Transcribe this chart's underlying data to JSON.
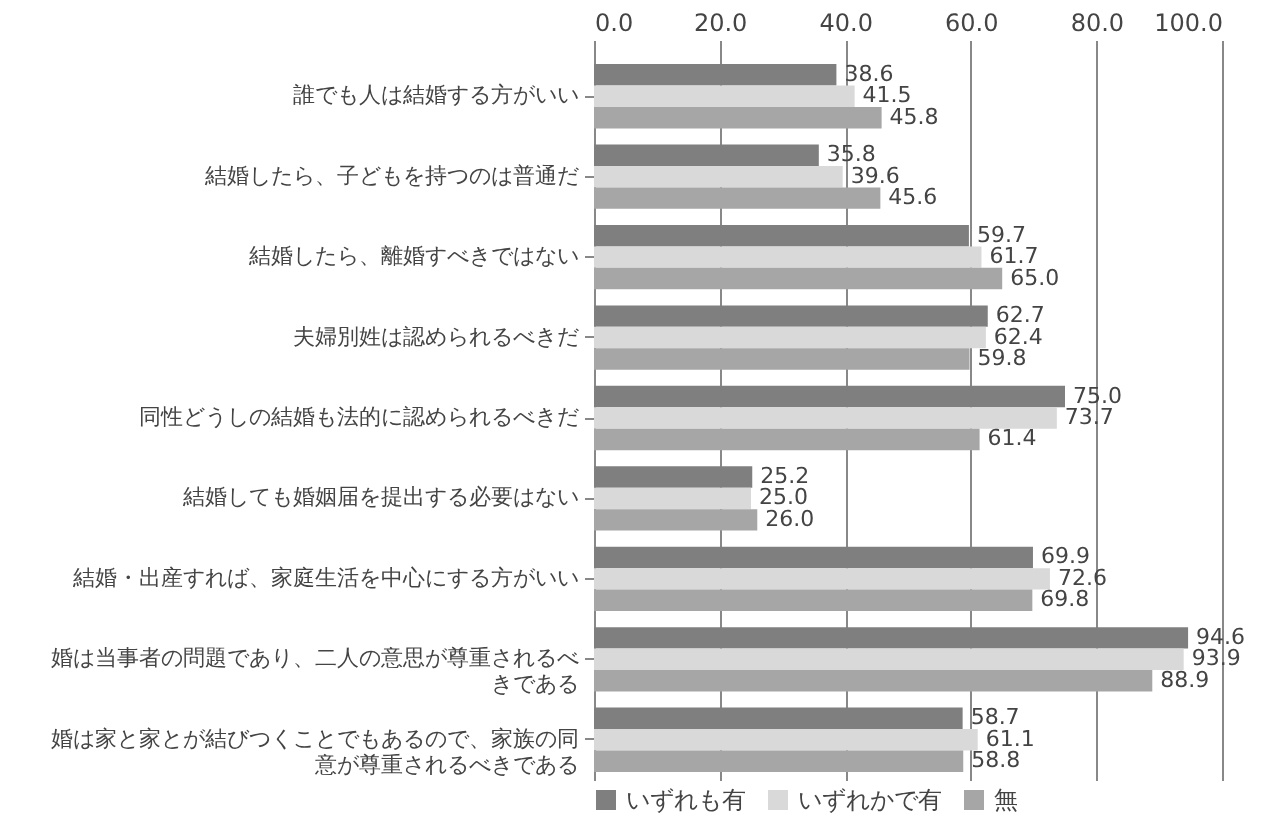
{
  "chart_data": {
    "type": "bar",
    "orientation": "horizontal",
    "categories": [
      "誰でも人は結婚する方がいい",
      "結婚したら、子どもを持つのは普通だ",
      "結婚したら、離婚すべきではない",
      "夫婦別姓は認められるべきだ",
      "同性どうしの結婚も法的に認められるべきだ",
      "結婚しても婚姻届を提出する必要はない",
      "結婚・出産すれば、家庭生活を中心にする方がいい",
      "婚は当事者の問題であり、二人の意思が尊重されるべきである",
      "婚は家と家とが結びつくことでもあるので、家族の同意が尊重されるべきである"
    ],
    "series": [
      {
        "name": "いずれも有",
        "color": "#7f7f7f",
        "values": [
          38.6,
          35.8,
          59.7,
          62.7,
          75.0,
          25.2,
          69.9,
          94.6,
          58.7
        ],
        "value_labels": [
          "38.6",
          "35.8",
          "59.7",
          "62.7",
          "75.0",
          "25.2",
          "69.9",
          "94.6",
          "58.7"
        ]
      },
      {
        "name": "いずれかで有",
        "color": "#d9d9d9",
        "values": [
          41.5,
          39.6,
          61.7,
          62.4,
          73.7,
          25.0,
          72.6,
          93.9,
          61.1
        ],
        "value_labels": [
          "41.5",
          "39.6",
          "61.7",
          "62.4",
          "73.7",
          "25.0",
          "72.6",
          "93.9",
          "61.1"
        ]
      },
      {
        "name": "無",
        "color": "#a6a6a6",
        "values": [
          45.8,
          45.6,
          65.0,
          59.8,
          61.4,
          26.0,
          69.8,
          88.9,
          58.8
        ],
        "value_labels": [
          "45.8",
          "45.6",
          "65.0",
          "59.8",
          "61.4",
          "26.0",
          "69.8",
          "88.9",
          "58.8"
        ]
      }
    ],
    "xlim": [
      0,
      100
    ],
    "xticks": [
      {
        "value": 0,
        "label": "0.0"
      },
      {
        "value": 20,
        "label": "20.0"
      },
      {
        "value": 40,
        "label": "40.0"
      },
      {
        "value": 60,
        "label": "60.0"
      },
      {
        "value": 80,
        "label": "80.0"
      },
      {
        "value": 100,
        "label": "100.0"
      }
    ],
    "grid": "x",
    "legend": "bottom"
  }
}
